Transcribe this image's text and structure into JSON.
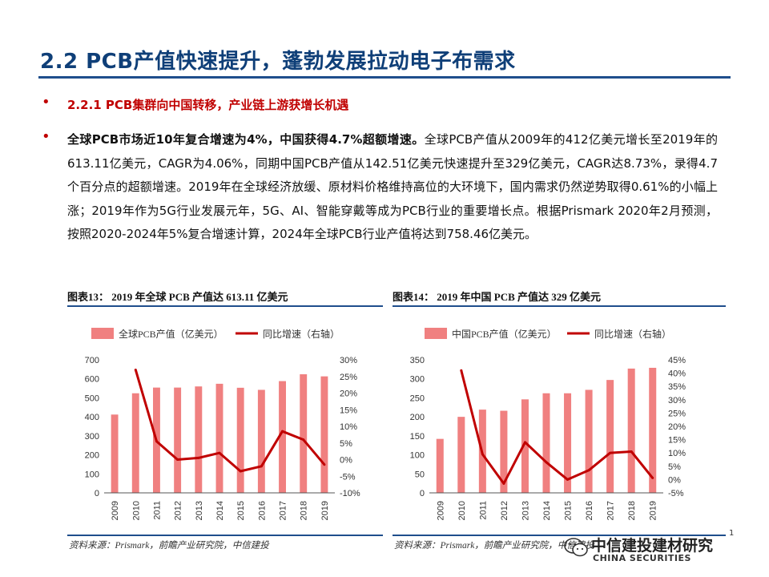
{
  "header": {
    "title": "2.2 PCB产值快速提升，蓬勃发展拉动电子布需求"
  },
  "subheading": {
    "bullet": "•",
    "text": "2.2.1 PCB集群向中国转移，产业链上游获增长机遇"
  },
  "paragraph": {
    "bullet": "•",
    "bold": "全球PCB市场近10年复合增速为4%，中国获得4.7%超额增速。",
    "text": "全球PCB产值从2009年的412亿美元增长至2019年的613.11亿美元，CAGR为4.06%，同期中国PCB产值从142.51亿美元快速提升至329亿美元，CAGR达8.73%，录得4.7个百分点的超额增速。2019年在全球经济放缓、原材料价格维持高位的大环境下，国内需求仍然逆势取得0.61%的小幅上涨；2019年作为5G行业发展元年，5G、AI、智能穿戴等成为PCB行业的重要增长点。根据Prismark 2020年2月预测，按照2020-2024年5%复合增速计算，2024年全球PCB行业产值将达到758.46亿美元。"
  },
  "figures": [
    {
      "title": "图表13： 2019 年全球 PCB 产值达 613.11 亿美元",
      "source": "资料来源：Prismark，前瞻产业研究院，中信建投"
    },
    {
      "title": "图表14： 2019 年中国 PCB 产值达 329 亿美元",
      "source": "资料来源：Prismark，前瞻产业研究院，中信建投"
    }
  ],
  "watermark": {
    "text": "中信建投建材研究",
    "sub": "CHINA SECURITIES"
  },
  "page_marker": "1",
  "colors": {
    "bar": "#f08080",
    "line": "#c00000",
    "title": "#0f3f78",
    "rule": "#1f4e8c"
  },
  "chart_data": [
    {
      "type": "bar",
      "categories": [
        "2009",
        "2010",
        "2011",
        "2012",
        "2013",
        "2014",
        "2015",
        "2016",
        "2017",
        "2018",
        "2019"
      ],
      "series": [
        {
          "name": "全球PCB产值（亿美元）",
          "type": "bar",
          "axis": "left",
          "values": [
            412,
            524,
            554,
            554,
            560,
            574,
            553,
            542,
            588,
            624,
            613
          ]
        },
        {
          "name": "同比增速（右轴）",
          "type": "line",
          "axis": "right",
          "values": [
            null,
            27,
            5.5,
            0,
            0.5,
            2,
            -3.5,
            -2,
            8.5,
            6,
            -1.5
          ]
        }
      ],
      "ylim": [
        0,
        700
      ],
      "yticks": [
        0,
        100,
        200,
        300,
        400,
        500,
        600,
        700
      ],
      "y2lim": [
        -10,
        30
      ],
      "y2ticks": [
        "-10%",
        "-5%",
        "0%",
        "5%",
        "10%",
        "15%",
        "20%",
        "25%",
        "30%"
      ],
      "legend": "top"
    },
    {
      "type": "bar",
      "categories": [
        "2009",
        "2010",
        "2011",
        "2012",
        "2013",
        "2014",
        "2015",
        "2016",
        "2017",
        "2018",
        "2019"
      ],
      "series": [
        {
          "name": "中国PCB产值（亿美元）",
          "type": "bar",
          "axis": "left",
          "values": [
            142,
            200,
            219,
            216,
            246,
            262,
            262,
            271,
            297,
            327,
            329
          ]
        },
        {
          "name": "同比增速（右轴）",
          "type": "line",
          "axis": "right",
          "values": [
            null,
            41,
            9.5,
            -1.5,
            14,
            6.5,
            0,
            3.5,
            10,
            10.5,
            0.6
          ]
        }
      ],
      "ylim": [
        0,
        350
      ],
      "yticks": [
        0,
        50,
        100,
        150,
        200,
        250,
        300,
        350
      ],
      "y2lim": [
        -5,
        45
      ],
      "y2ticks": [
        "-5%",
        "0%",
        "5%",
        "10%",
        "15%",
        "20%",
        "25%",
        "30%",
        "35%",
        "40%",
        "45%"
      ],
      "legend": "top"
    }
  ]
}
